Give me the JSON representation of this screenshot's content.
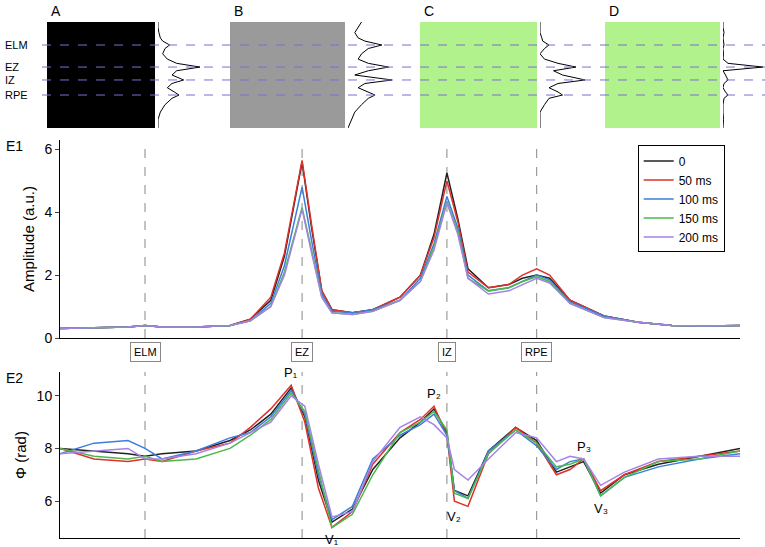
{
  "layers": [
    {
      "name": "ELM",
      "depth": 21.7,
      "x": 12.5
    },
    {
      "name": "EZ",
      "depth": 42.5,
      "x": 35.6
    },
    {
      "name": "IZ",
      "depth": 54.7,
      "x": 56.9
    },
    {
      "name": "RPE",
      "depth": 68.9,
      "x": 70.1
    }
  ],
  "profile_depth": [
    0,
    5,
    10,
    15,
    18,
    21.7,
    25,
    30,
    35,
    39,
    42.5,
    46,
    50,
    54.7,
    58,
    62,
    66,
    68.9,
    72,
    78,
    85,
    92,
    100
  ],
  "panels": [
    {
      "label": "A",
      "color": "#000000",
      "profile": [
        0.1,
        0.1,
        0.12,
        0.15,
        0.2,
        0.35,
        0.25,
        0.2,
        0.3,
        0.5,
        1.0,
        0.5,
        0.4,
        0.65,
        0.4,
        0.3,
        0.45,
        0.55,
        0.4,
        0.25,
        0.15,
        0.1,
        0.1
      ]
    },
    {
      "label": "B",
      "color": "#9a9a9a",
      "profile": [
        0.5,
        0.45,
        0.4,
        0.45,
        0.55,
        0.8,
        0.6,
        0.5,
        0.45,
        0.6,
        0.9,
        0.6,
        0.4,
        0.95,
        0.55,
        0.45,
        0.6,
        0.7,
        0.6,
        0.5,
        0.4,
        0.35,
        0.3
      ]
    },
    {
      "label": "C",
      "color": "#b2f28c",
      "profile": [
        0.3,
        0.3,
        0.3,
        0.32,
        0.33,
        0.4,
        0.35,
        0.3,
        0.35,
        0.5,
        0.7,
        0.45,
        0.55,
        0.8,
        0.5,
        0.4,
        0.5,
        0.55,
        0.4,
        0.35,
        0.3,
        0.3,
        0.3
      ]
    },
    {
      "label": "D",
      "color": "#b2f28c",
      "profile": [
        0.2,
        0.2,
        0.22,
        0.2,
        0.21,
        0.22,
        0.2,
        0.21,
        0.2,
        0.3,
        1.0,
        0.2,
        0.25,
        0.3,
        0.22,
        0.2,
        0.25,
        0.3,
        0.22,
        0.2,
        0.2,
        0.21,
        0.2
      ]
    }
  ],
  "chart_data": [
    {
      "type": "line",
      "label": "E1",
      "y_label": "Amplitude (a.u.)",
      "x": [
        0,
        5,
        10,
        12.5,
        15,
        20,
        25,
        28,
        31,
        33,
        35.6,
        37,
        38.5,
        40,
        43,
        46,
        50,
        53,
        55,
        56.9,
        58.5,
        60,
        63,
        66,
        68,
        70.1,
        72,
        75,
        80,
        85,
        90,
        95,
        100
      ],
      "xlim": [
        0,
        100
      ],
      "ylim": [
        0,
        6.3
      ],
      "yticks": [
        0,
        2,
        4,
        6
      ],
      "tick_labels": "y",
      "legend": "upper right",
      "series": [
        {
          "name": "0",
          "color": "#222222",
          "values": [
            0.3,
            0.32,
            0.35,
            0.4,
            0.35,
            0.35,
            0.4,
            0.6,
            1.2,
            2.6,
            5.6,
            3.5,
            1.5,
            0.9,
            0.8,
            0.9,
            1.3,
            2.0,
            3.3,
            5.25,
            3.8,
            2.2,
            1.6,
            1.7,
            1.9,
            2.0,
            1.9,
            1.2,
            0.7,
            0.5,
            0.4,
            0.38,
            0.4
          ]
        },
        {
          "name": "50 ms",
          "color": "#e0302a",
          "values": [
            0.3,
            0.32,
            0.35,
            0.4,
            0.35,
            0.35,
            0.4,
            0.6,
            1.3,
            2.7,
            5.65,
            3.6,
            1.5,
            0.9,
            0.8,
            0.9,
            1.3,
            2.0,
            3.2,
            5.0,
            3.7,
            2.1,
            1.6,
            1.7,
            2.0,
            2.2,
            2.0,
            1.2,
            0.7,
            0.5,
            0.4,
            0.38,
            0.4
          ]
        },
        {
          "name": "100 ms",
          "color": "#3a7fdc",
          "values": [
            0.3,
            0.32,
            0.35,
            0.4,
            0.35,
            0.35,
            0.4,
            0.55,
            1.1,
            2.3,
            4.8,
            3.1,
            1.4,
            0.85,
            0.8,
            0.9,
            1.2,
            1.9,
            3.0,
            4.5,
            3.5,
            2.0,
            1.5,
            1.6,
            1.8,
            2.0,
            1.85,
            1.15,
            0.7,
            0.5,
            0.4,
            0.38,
            0.4
          ]
        },
        {
          "name": "150 ms",
          "color": "#4cb84c",
          "values": [
            0.3,
            0.32,
            0.35,
            0.4,
            0.35,
            0.35,
            0.4,
            0.55,
            1.0,
            2.1,
            4.15,
            2.8,
            1.3,
            0.8,
            0.75,
            0.85,
            1.2,
            1.8,
            2.9,
            4.35,
            3.4,
            1.9,
            1.5,
            1.6,
            1.8,
            1.95,
            1.8,
            1.1,
            0.65,
            0.5,
            0.4,
            0.38,
            0.4
          ]
        },
        {
          "name": "200 ms",
          "color": "#a582e6",
          "values": [
            0.3,
            0.32,
            0.35,
            0.4,
            0.35,
            0.35,
            0.4,
            0.55,
            1.0,
            2.0,
            4.1,
            2.7,
            1.3,
            0.8,
            0.75,
            0.85,
            1.2,
            1.8,
            2.8,
            4.3,
            3.3,
            1.9,
            1.4,
            1.5,
            1.7,
            1.9,
            1.75,
            1.1,
            0.65,
            0.5,
            0.4,
            0.38,
            0.4
          ]
        }
      ]
    },
    {
      "type": "line",
      "label": "E2",
      "y_label": "Φ (rad)",
      "x": [
        0,
        5,
        10,
        12.5,
        15,
        20,
        25,
        28,
        31,
        34,
        36,
        38,
        40,
        43,
        46,
        50,
        53,
        55,
        56.9,
        58,
        60,
        63,
        67,
        70.1,
        73,
        75,
        77,
        79.5,
        83,
        88,
        94,
        100
      ],
      "xlim": [
        0,
        100
      ],
      "ylim": [
        4.6,
        10.9
      ],
      "yticks": [
        6,
        8,
        10
      ],
      "tick_labels": "y",
      "annotations": [
        {
          "text": "P₁",
          "x": 34,
          "y": 10.4
        },
        {
          "text": "V₁",
          "x": 40,
          "y": 5.0
        },
        {
          "text": "P₂",
          "x": 55,
          "y": 9.6
        },
        {
          "text": "V₂",
          "x": 58,
          "y": 5.9
        },
        {
          "text": "P₃",
          "x": 77,
          "y": 7.6
        },
        {
          "text": "V₃",
          "x": 79.5,
          "y": 6.2
        }
      ],
      "series": [
        {
          "color": "#222222",
          "values": [
            8.0,
            7.9,
            7.8,
            7.7,
            7.8,
            7.9,
            8.3,
            8.7,
            9.3,
            10.3,
            9.2,
            6.8,
            5.2,
            5.7,
            7.2,
            8.4,
            9.0,
            9.5,
            8.6,
            6.4,
            6.2,
            7.9,
            8.8,
            8.3,
            7.1,
            7.3,
            7.5,
            6.3,
            7.0,
            7.4,
            7.7,
            8.0
          ]
        },
        {
          "color": "#e0302a",
          "values": [
            8.0,
            7.6,
            7.5,
            7.6,
            7.5,
            7.9,
            8.2,
            8.8,
            9.5,
            10.4,
            9.0,
            6.5,
            5.0,
            5.6,
            7.4,
            8.6,
            9.1,
            9.6,
            8.5,
            6.0,
            5.8,
            7.8,
            8.8,
            8.2,
            7.0,
            7.2,
            7.6,
            6.4,
            7.0,
            7.5,
            7.7,
            7.9
          ]
        },
        {
          "color": "#3a7fdc",
          "values": [
            7.8,
            8.2,
            8.3,
            8.0,
            7.6,
            7.9,
            8.4,
            8.6,
            9.2,
            10.2,
            9.3,
            7.0,
            5.3,
            5.8,
            7.6,
            8.5,
            8.9,
            9.3,
            8.5,
            6.4,
            6.1,
            7.9,
            8.7,
            8.1,
            7.2,
            7.5,
            7.6,
            6.2,
            6.9,
            7.3,
            7.6,
            7.8
          ]
        },
        {
          "color": "#4cb84c",
          "values": [
            8.0,
            7.7,
            7.6,
            7.7,
            7.5,
            7.6,
            8.0,
            8.5,
            9.1,
            10.1,
            9.4,
            7.2,
            5.0,
            5.5,
            7.0,
            8.6,
            9.0,
            9.4,
            8.7,
            6.3,
            6.1,
            7.8,
            8.7,
            8.2,
            7.3,
            7.4,
            7.6,
            6.2,
            6.9,
            7.5,
            7.6,
            7.9
          ]
        },
        {
          "color": "#a582e6",
          "values": [
            7.8,
            7.9,
            8.0,
            7.6,
            7.6,
            7.8,
            8.2,
            8.6,
            9.0,
            10.0,
            9.6,
            7.4,
            5.4,
            5.6,
            7.5,
            8.8,
            9.2,
            8.9,
            8.4,
            7.2,
            6.8,
            7.6,
            8.6,
            8.4,
            7.5,
            7.7,
            7.6,
            6.6,
            7.1,
            7.6,
            7.7,
            7.7
          ]
        }
      ]
    }
  ]
}
